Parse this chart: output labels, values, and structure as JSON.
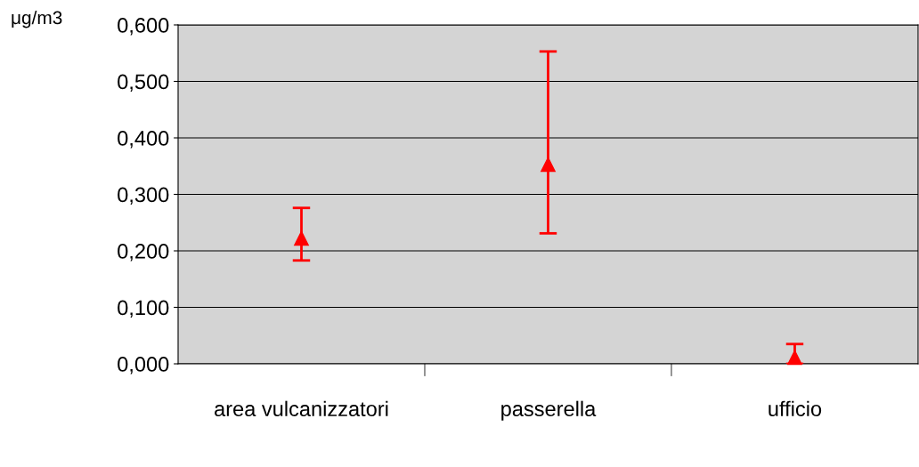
{
  "chart_data": {
    "type": "scatter",
    "ylabel": "μg/m3",
    "categories": [
      "area vulcanizzatori",
      "passerella",
      "ufficio"
    ],
    "series": [
      {
        "color": "#ff0000",
        "values": [
          0.222,
          0.353,
          0.011
        ],
        "errors": [
          [
            0.183,
            0.276
          ],
          [
            0.231,
            0.553
          ],
          [
            0.0,
            0.035
          ]
        ]
      }
    ],
    "ylim": [
      0,
      0.6
    ],
    "yticks": [
      {
        "value": 0,
        "label": "0,000"
      },
      {
        "value": 0.1,
        "label": "0,100"
      },
      {
        "value": 0.2,
        "label": "0,200"
      },
      {
        "value": 0.3,
        "label": "0,300"
      },
      {
        "value": 0.4,
        "label": "0,400"
      },
      {
        "value": 0.5,
        "label": "0,500"
      },
      {
        "value": 0.6,
        "label": "0,600"
      }
    ],
    "grid": "y",
    "marker": "triangle",
    "legend": false
  }
}
